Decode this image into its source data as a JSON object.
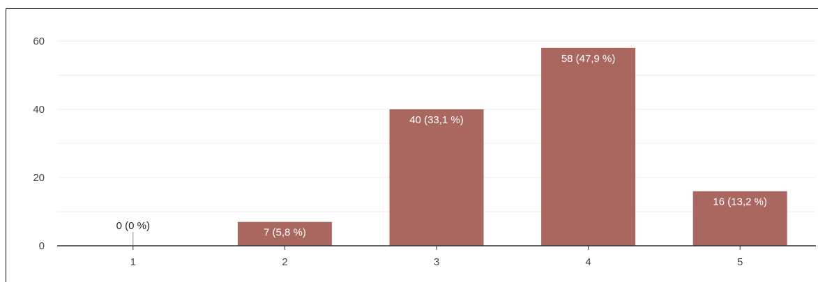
{
  "chart_data": {
    "type": "bar",
    "title": "",
    "xlabel": "",
    "ylabel": "",
    "categories": [
      "1",
      "2",
      "3",
      "4",
      "5"
    ],
    "values": [
      0,
      7,
      40,
      58,
      16
    ],
    "data_labels": [
      "0 (0 %)",
      "7 (5,8 %)",
      "40 (33,1 %)",
      "58 (47,9 %)",
      "16 (13,2 %)"
    ],
    "ylim": [
      0,
      60
    ],
    "yticks": [
      "0",
      "20",
      "40",
      "60"
    ],
    "grid": true,
    "legend": "none",
    "colors": {
      "bar": "#a9675f",
      "grid": "#ececec",
      "axis": "#333333"
    }
  }
}
